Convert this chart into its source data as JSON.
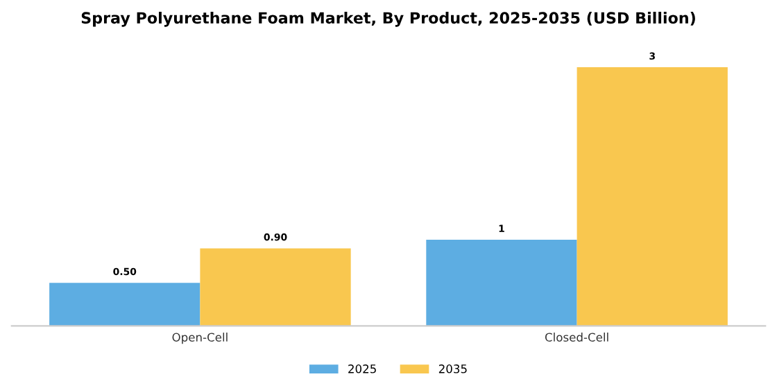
{
  "chart_data": {
    "type": "bar",
    "title": "Spray Polyurethane Foam Market, By Product, 2025-2035 (USD Billion)",
    "categories": [
      "Open-Cell",
      "Closed-Cell"
    ],
    "series": [
      {
        "name": "2025",
        "color": "#5dade2",
        "values": [
          0.5,
          1
        ],
        "value_labels": [
          "0.50",
          "1"
        ]
      },
      {
        "name": "2035",
        "color": "#f9c74f",
        "values": [
          0.9,
          3
        ],
        "value_labels": [
          "0.90",
          "3"
        ]
      }
    ],
    "legend": "bottom",
    "grid": false
  }
}
